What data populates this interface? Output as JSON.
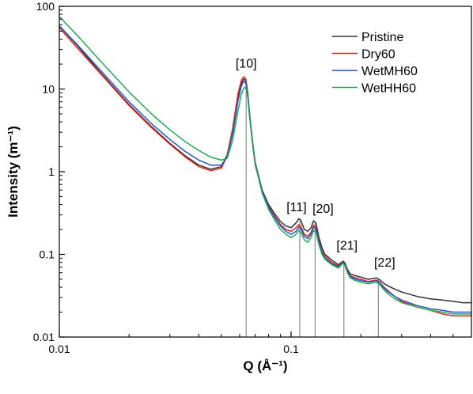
{
  "chart_data": {
    "type": "line",
    "xlabel": "Q (Å⁻¹)",
    "ylabel": "Intensity (m⁻¹)",
    "x_scale": "log",
    "y_scale": "log",
    "xlim": [
      0.01,
      0.6
    ],
    "ylim": [
      0.01,
      100
    ],
    "x_ticks": [
      0.01,
      0.1
    ],
    "x_tick_labels": [
      "0.01",
      "0.1"
    ],
    "y_ticks": [
      0.01,
      0.1,
      1,
      10,
      100
    ],
    "y_tick_labels": [
      "0.01",
      "0.1",
      "1",
      "10",
      "100"
    ],
    "grid": false,
    "legend_position": "top-right",
    "colors": {
      "Pristine": "#333333",
      "Dry60": "#e32626",
      "WetMH60": "#2255c4",
      "WetHH60": "#22a85a"
    },
    "series": [
      {
        "name": "Pristine",
        "x": [
          0.01,
          0.012,
          0.015,
          0.02,
          0.025,
          0.03,
          0.035,
          0.04,
          0.045,
          0.05,
          0.053,
          0.056,
          0.059,
          0.061,
          0.062,
          0.063,
          0.064,
          0.065,
          0.066,
          0.068,
          0.07,
          0.075,
          0.08,
          0.085,
          0.09,
          0.095,
          0.1,
          0.105,
          0.108,
          0.11,
          0.114,
          0.118,
          0.122,
          0.125,
          0.128,
          0.132,
          0.136,
          0.14,
          0.15,
          0.16,
          0.165,
          0.168,
          0.171,
          0.175,
          0.18,
          0.19,
          0.2,
          0.215,
          0.225,
          0.233,
          0.24,
          0.25,
          0.26,
          0.28,
          0.3,
          0.35,
          0.4,
          0.45,
          0.5,
          0.55,
          0.6
        ],
        "y": [
          58,
          33,
          16,
          6.5,
          3.5,
          2.2,
          1.55,
          1.2,
          1.07,
          1.15,
          1.6,
          3.2,
          8.0,
          11.6,
          12.8,
          13.3,
          12.0,
          9.0,
          5.5,
          2.5,
          1.3,
          0.6,
          0.4,
          0.31,
          0.25,
          0.22,
          0.21,
          0.24,
          0.27,
          0.26,
          0.2,
          0.19,
          0.21,
          0.255,
          0.24,
          0.16,
          0.12,
          0.1,
          0.085,
          0.075,
          0.08,
          0.083,
          0.078,
          0.066,
          0.058,
          0.055,
          0.053,
          0.05,
          0.051,
          0.052,
          0.05,
          0.045,
          0.042,
          0.038,
          0.035,
          0.031,
          0.029,
          0.028,
          0.027,
          0.026,
          0.026
        ]
      },
      {
        "name": "Dry60",
        "x": [
          0.01,
          0.012,
          0.015,
          0.02,
          0.025,
          0.03,
          0.035,
          0.04,
          0.045,
          0.05,
          0.053,
          0.056,
          0.059,
          0.061,
          0.062,
          0.063,
          0.064,
          0.065,
          0.066,
          0.068,
          0.07,
          0.075,
          0.08,
          0.085,
          0.09,
          0.095,
          0.1,
          0.105,
          0.108,
          0.11,
          0.114,
          0.118,
          0.122,
          0.125,
          0.128,
          0.132,
          0.136,
          0.14,
          0.15,
          0.16,
          0.165,
          0.168,
          0.171,
          0.175,
          0.18,
          0.19,
          0.2,
          0.215,
          0.225,
          0.233,
          0.24,
          0.25,
          0.26,
          0.28,
          0.3,
          0.35,
          0.4,
          0.45,
          0.5,
          0.55,
          0.6
        ],
        "y": [
          55,
          31,
          15.5,
          6.3,
          3.4,
          2.15,
          1.5,
          1.15,
          1.03,
          1.1,
          1.55,
          3.4,
          8.8,
          12.7,
          13.8,
          14.0,
          12.4,
          9.0,
          5.2,
          2.3,
          1.2,
          0.58,
          0.38,
          0.29,
          0.23,
          0.2,
          0.19,
          0.21,
          0.23,
          0.22,
          0.175,
          0.165,
          0.185,
          0.225,
          0.215,
          0.145,
          0.11,
          0.095,
          0.08,
          0.072,
          0.078,
          0.081,
          0.075,
          0.063,
          0.055,
          0.052,
          0.05,
          0.047,
          0.048,
          0.049,
          0.047,
          0.041,
          0.037,
          0.031,
          0.027,
          0.023,
          0.021,
          0.019,
          0.018,
          0.018,
          0.018
        ]
      },
      {
        "name": "WetMH60",
        "x": [
          0.01,
          0.012,
          0.015,
          0.02,
          0.025,
          0.03,
          0.035,
          0.04,
          0.045,
          0.05,
          0.053,
          0.056,
          0.059,
          0.061,
          0.062,
          0.063,
          0.064,
          0.065,
          0.066,
          0.068,
          0.07,
          0.075,
          0.08,
          0.085,
          0.09,
          0.095,
          0.1,
          0.105,
          0.108,
          0.11,
          0.114,
          0.118,
          0.122,
          0.125,
          0.128,
          0.132,
          0.136,
          0.14,
          0.15,
          0.16,
          0.165,
          0.168,
          0.171,
          0.175,
          0.18,
          0.19,
          0.2,
          0.215,
          0.225,
          0.233,
          0.24,
          0.25,
          0.26,
          0.28,
          0.3,
          0.35,
          0.4,
          0.45,
          0.5,
          0.55,
          0.6
        ],
        "y": [
          58,
          34,
          17,
          7.0,
          3.8,
          2.45,
          1.75,
          1.38,
          1.2,
          1.2,
          1.5,
          2.9,
          7.2,
          10.8,
          12.0,
          12.4,
          11.3,
          8.6,
          5.3,
          2.4,
          1.25,
          0.58,
          0.37,
          0.28,
          0.22,
          0.19,
          0.175,
          0.19,
          0.215,
          0.205,
          0.165,
          0.155,
          0.175,
          0.215,
          0.2,
          0.14,
          0.105,
          0.09,
          0.077,
          0.07,
          0.077,
          0.08,
          0.074,
          0.062,
          0.054,
          0.05,
          0.048,
          0.046,
          0.047,
          0.048,
          0.046,
          0.04,
          0.036,
          0.031,
          0.028,
          0.024,
          0.022,
          0.021,
          0.02,
          0.02,
          0.02
        ]
      },
      {
        "name": "WetHH60",
        "x": [
          0.01,
          0.012,
          0.015,
          0.02,
          0.025,
          0.03,
          0.035,
          0.04,
          0.045,
          0.05,
          0.053,
          0.056,
          0.059,
          0.061,
          0.062,
          0.063,
          0.064,
          0.065,
          0.066,
          0.068,
          0.07,
          0.075,
          0.08,
          0.085,
          0.09,
          0.095,
          0.1,
          0.105,
          0.108,
          0.11,
          0.114,
          0.118,
          0.122,
          0.125,
          0.128,
          0.132,
          0.136,
          0.14,
          0.15,
          0.16,
          0.165,
          0.168,
          0.171,
          0.175,
          0.18,
          0.19,
          0.2,
          0.215,
          0.225,
          0.233,
          0.24,
          0.25,
          0.26,
          0.28,
          0.3,
          0.35,
          0.4,
          0.45,
          0.5,
          0.55,
          0.6
        ],
        "y": [
          75,
          44,
          22,
          9.2,
          5.0,
          3.2,
          2.3,
          1.8,
          1.5,
          1.38,
          1.45,
          2.4,
          5.5,
          8.6,
          9.8,
          10.5,
          10.0,
          7.9,
          5.0,
          2.4,
          1.25,
          0.55,
          0.35,
          0.26,
          0.2,
          0.175,
          0.16,
          0.175,
          0.195,
          0.185,
          0.15,
          0.14,
          0.16,
          0.195,
          0.185,
          0.13,
          0.1,
          0.087,
          0.075,
          0.068,
          0.075,
          0.078,
          0.072,
          0.06,
          0.052,
          0.048,
          0.046,
          0.044,
          0.045,
          0.046,
          0.044,
          0.038,
          0.034,
          0.029,
          0.026,
          0.023,
          0.021,
          0.02,
          0.019,
          0.019,
          0.019
        ]
      }
    ],
    "peak_markers": [
      {
        "label": "[10]",
        "q": 0.064,
        "top": 13.3
      },
      {
        "label": "[11]",
        "q": 0.109,
        "top": 0.255
      },
      {
        "label": "[20]",
        "q": 0.127,
        "top": 0.245
      },
      {
        "label": "[21]",
        "q": 0.169,
        "top": 0.08
      },
      {
        "label": "[22]",
        "q": 0.238,
        "top": 0.05
      }
    ]
  }
}
